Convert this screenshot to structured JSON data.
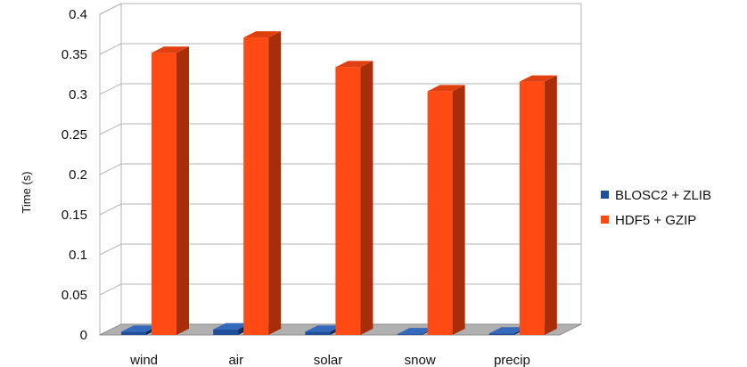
{
  "chart_data": {
    "type": "bar",
    "title": "",
    "xlabel": "",
    "ylabel": "Time (s)",
    "ylim": [
      0,
      0.4
    ],
    "yticks": [
      "0",
      "0.05",
      "0.1",
      "0.15",
      "0.2",
      "0.25",
      "0.3",
      "0.35",
      "0.4"
    ],
    "categories": [
      "wind",
      "air",
      "solar",
      "snow",
      "precip"
    ],
    "series": [
      {
        "name": "BLOSC2 + ZLIB",
        "values": [
          0.004,
          0.007,
          0.004,
          0.001,
          0.002
        ],
        "color": "#1f4e9a",
        "side_color": "#0f2d5e",
        "top_color": "#3569bd"
      },
      {
        "name": "HDF5 + GZIP",
        "values": [
          0.352,
          0.371,
          0.334,
          0.304,
          0.316
        ],
        "color": "#ff4a14",
        "side_color": "#a82e0a",
        "top_color": "#e0400f"
      }
    ],
    "grid": true,
    "legend": "right",
    "style": "3d"
  }
}
